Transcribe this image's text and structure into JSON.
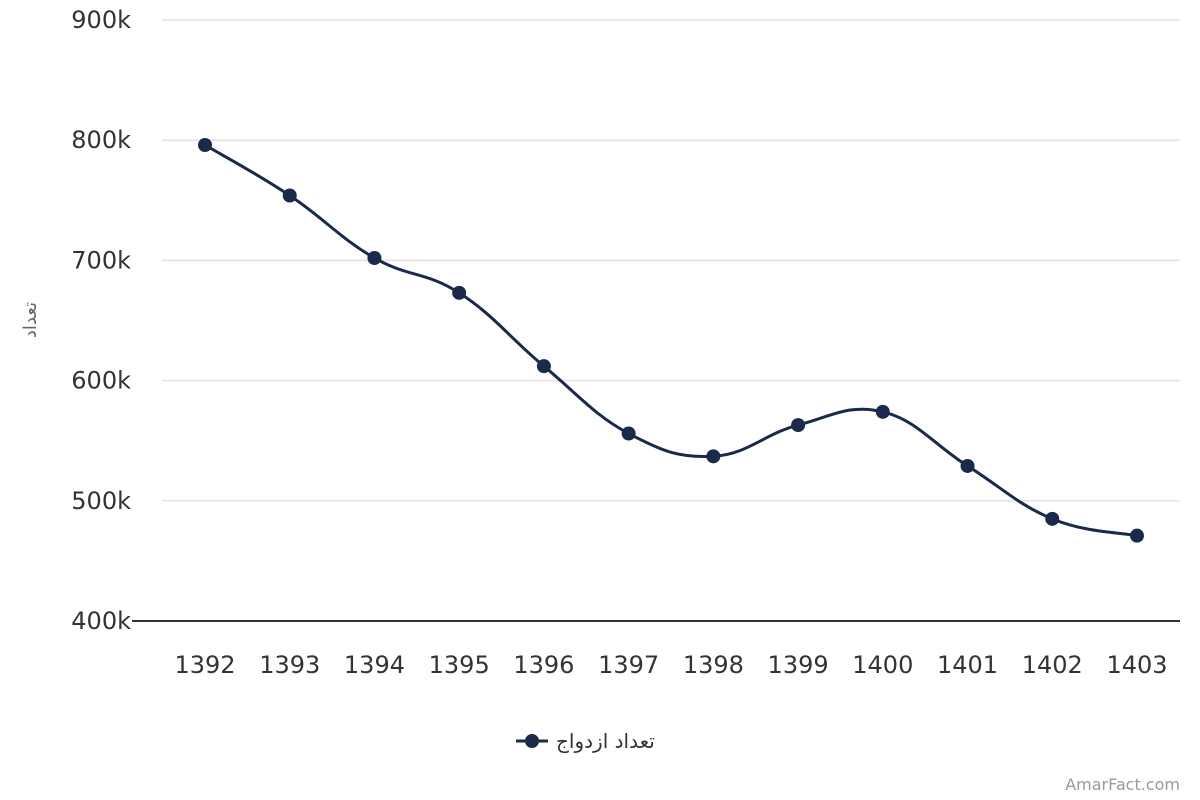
{
  "chart_data": {
    "type": "line",
    "categories": [
      "1392",
      "1393",
      "1394",
      "1395",
      "1396",
      "1397",
      "1398",
      "1399",
      "1400",
      "1401",
      "1402",
      "1403"
    ],
    "series": [
      {
        "name": "تعداد ازدواج",
        "values": [
          796000,
          754000,
          702000,
          673000,
          612000,
          556000,
          537000,
          563000,
          574000,
          529000,
          485000,
          471000
        ]
      }
    ],
    "ylabel": "تعداد",
    "xlabel": "",
    "ylim": [
      400000,
      900000
    ],
    "yticks": [
      {
        "value": 400000,
        "label": "400k"
      },
      {
        "value": 500000,
        "label": "500k"
      },
      {
        "value": 600000,
        "label": "600k"
      },
      {
        "value": 700000,
        "label": "700k"
      },
      {
        "value": 800000,
        "label": "800k"
      },
      {
        "value": 900000,
        "label": "900k"
      }
    ],
    "grid": true,
    "legend_position": "bottom",
    "line_color": "#1a2a4a",
    "grid_color": "#e3e3e3",
    "axis_color": "#333333"
  },
  "watermark": "AmarFact.com"
}
